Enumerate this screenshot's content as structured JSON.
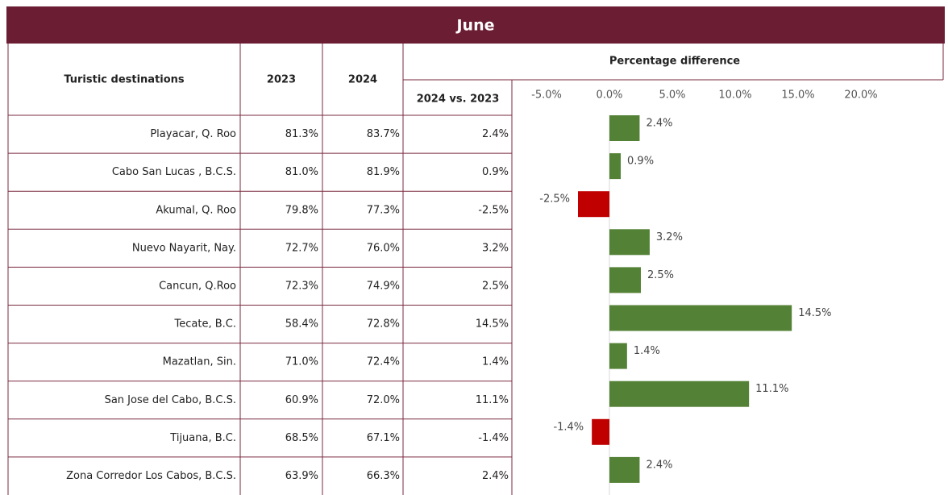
{
  "title": "June",
  "table": {
    "columns": [
      "Turistic destinations",
      "2023",
      "2024",
      "Percentage difference",
      "2024 vs. 2023"
    ],
    "rows": [
      [
        "Playacar, Q. Roo",
        "81.3%",
        "83.7%",
        "2.4%"
      ],
      [
        "Cabo San Lucas , B.C.S.",
        "81.0%",
        "81.9%",
        "0.9%"
      ],
      [
        "Akumal, Q. Roo",
        "79.8%",
        "77.3%",
        "-2.5%"
      ],
      [
        "Nuevo Nayarit, Nay.",
        "72.7%",
        "76.0%",
        "3.2%"
      ],
      [
        "Cancun, Q.Roo",
        "72.3%",
        "74.9%",
        "2.5%"
      ],
      [
        "Tecate, B.C.",
        "58.4%",
        "72.8%",
        "14.5%"
      ],
      [
        "Mazatlan, Sin.",
        "71.0%",
        "72.4%",
        "1.4%"
      ],
      [
        "San Jose del Cabo, B.C.S.",
        "60.9%",
        "72.0%",
        "11.1%"
      ],
      [
        "Tijuana, B.C.",
        "68.5%",
        "67.1%",
        "-1.4%"
      ],
      [
        "Zona Corredor Los Cabos, B.C.S.",
        "63.9%",
        "66.3%",
        "2.4%"
      ]
    ]
  },
  "chart_data": {
    "type": "bar",
    "orientation": "horizontal",
    "values": [
      2.4,
      0.9,
      -2.5,
      3.2,
      2.5,
      14.5,
      1.4,
      11.1,
      -1.4,
      2.4
    ],
    "value_labels": [
      "2.4%",
      "0.9%",
      "-2.5%",
      "3.2%",
      "2.5%",
      "14.5%",
      "1.4%",
      "11.1%",
      "-1.4%",
      "2.4%"
    ],
    "positive_color": "#538135",
    "negative_color": "#c00000",
    "xlim": [
      -5,
      20
    ],
    "xticks": [
      {
        "value": -5,
        "label": "-5.0%"
      },
      {
        "value": 0,
        "label": "0.0%"
      },
      {
        "value": 5,
        "label": "5.0%"
      },
      {
        "value": 10,
        "label": "10.0%"
      },
      {
        "value": 15,
        "label": "15.0%"
      },
      {
        "value": 20,
        "label": "20.0%"
      }
    ]
  }
}
